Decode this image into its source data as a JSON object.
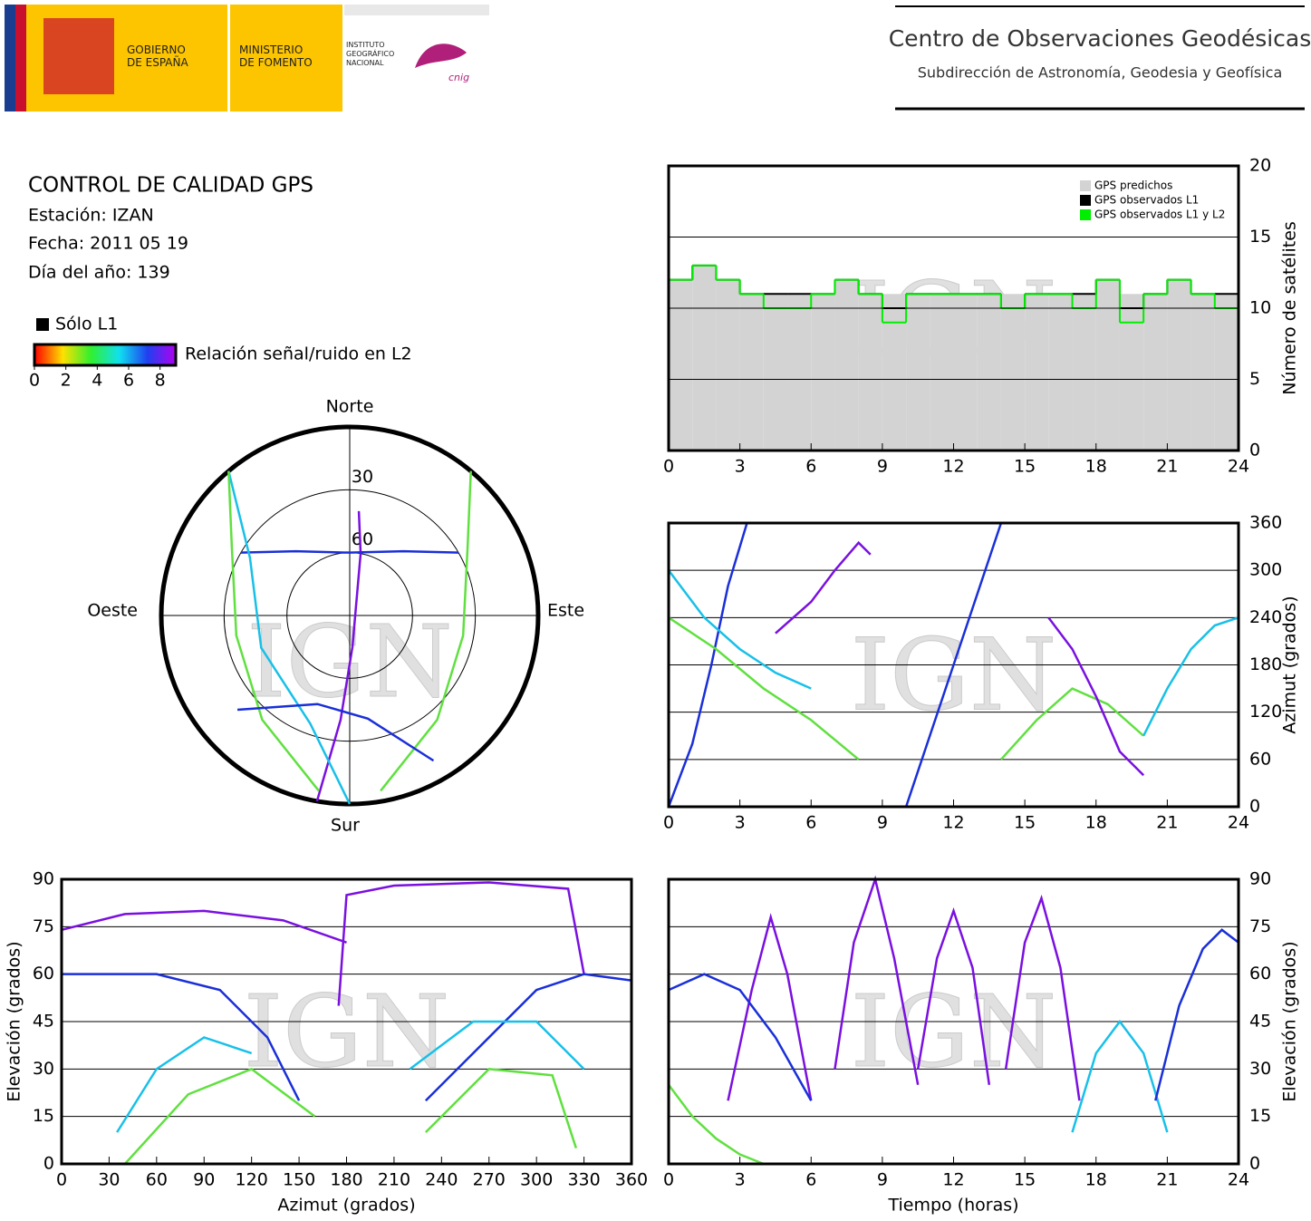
{
  "header": {
    "gov": "GOBIERNO DE ESPAÑA",
    "ministry": "MINISTERIO DE FOMENTO",
    "institute": "INSTITUTO GEOGRÁFICO NACIONAL",
    "cnig": "cnig",
    "center": "Centro de Observaciones Geodésicas",
    "subdirection": "Subdirección de Astronomía, Geodesia y Geofísica"
  },
  "info": {
    "title": "CONTROL DE CALIDAD GPS",
    "station": "Estación: IZAN",
    "date": "Fecha: 2011 05 19",
    "doy": "Día del año: 139"
  },
  "watermark": "IGN",
  "chart_data": [
    {
      "type": "step",
      "ylabel": "Número de satélites",
      "xlim": [
        0,
        24
      ],
      "xticks": [
        0,
        3,
        6,
        9,
        12,
        15,
        18,
        21,
        24
      ],
      "ylim": [
        0,
        20
      ],
      "yticks": [
        0,
        5,
        10,
        15,
        20
      ],
      "grid": true,
      "legend": "upper right",
      "series": [
        {
          "name": "GPS predichos",
          "color": "#d3d3d3",
          "x": [
            0,
            1,
            2,
            3,
            4,
            5,
            6,
            7,
            8,
            9,
            10,
            11,
            12,
            13,
            14,
            15,
            16,
            17,
            18,
            19,
            20,
            21,
            22,
            23
          ],
          "values": [
            12,
            13,
            12,
            11,
            11,
            11,
            11,
            12,
            11,
            11,
            11,
            11,
            11,
            11,
            11,
            11,
            11,
            11,
            12,
            11,
            11,
            12,
            11,
            11
          ]
        },
        {
          "name": "GPS observados L1",
          "color": "#000000",
          "x": [
            0,
            1,
            2,
            3,
            4,
            5,
            6,
            7,
            8,
            9,
            10,
            11,
            12,
            13,
            14,
            15,
            16,
            17,
            18,
            19,
            20,
            21,
            22,
            23
          ],
          "values": [
            12,
            13,
            12,
            11,
            11,
            11,
            11,
            12,
            11,
            10,
            11,
            11,
            11,
            11,
            10,
            11,
            11,
            11,
            12,
            10,
            11,
            12,
            11,
            11
          ]
        },
        {
          "name": "GPS observados L1 y L2",
          "color": "#00ee00",
          "x": [
            0,
            1,
            2,
            3,
            4,
            5,
            6,
            7,
            8,
            9,
            10,
            11,
            12,
            13,
            14,
            15,
            16,
            17,
            18,
            19,
            20,
            21,
            22,
            23
          ],
          "values": [
            12,
            13,
            12,
            11,
            10,
            10,
            11,
            12,
            11,
            9,
            11,
            11,
            11,
            11,
            10,
            11,
            11,
            10,
            12,
            9,
            11,
            12,
            11,
            10
          ]
        }
      ]
    },
    {
      "type": "line",
      "ylabel": "Azimut (grados)",
      "xlim": [
        0,
        24
      ],
      "xticks": [
        0,
        3,
        6,
        9,
        12,
        15,
        18,
        21,
        24
      ],
      "ylim": [
        0,
        360
      ],
      "yticks": [
        0,
        60,
        120,
        180,
        240,
        300,
        360
      ],
      "grid": true,
      "series": [
        {
          "color": "#1a2fd8",
          "x": [
            0,
            1,
            1.8,
            2.5,
            3.3
          ],
          "values": [
            0,
            80,
            180,
            280,
            360
          ]
        },
        {
          "color": "#7a10e0",
          "x": [
            4.5,
            6,
            7,
            8,
            8.5
          ],
          "values": [
            220,
            260,
            300,
            335,
            320
          ]
        },
        {
          "color": "#18c0e8",
          "x": [
            0,
            1.5,
            3,
            4.5,
            6
          ],
          "values": [
            300,
            240,
            200,
            170,
            150
          ]
        },
        {
          "color": "#60e040",
          "x": [
            0,
            2,
            4,
            6,
            8
          ],
          "values": [
            240,
            200,
            150,
            110,
            60
          ]
        },
        {
          "color": "#1a2fd8",
          "x": [
            10,
            11,
            12,
            13,
            14
          ],
          "values": [
            0,
            90,
            180,
            270,
            360
          ]
        },
        {
          "color": "#60e040",
          "x": [
            14,
            15.5,
            17,
            18.5,
            20
          ],
          "values": [
            60,
            110,
            150,
            130,
            90
          ]
        },
        {
          "color": "#7a10e0",
          "x": [
            16,
            17,
            18,
            19,
            20
          ],
          "values": [
            240,
            200,
            140,
            70,
            40
          ]
        },
        {
          "color": "#18c0e8",
          "x": [
            20,
            21,
            22,
            23,
            24
          ],
          "values": [
            90,
            150,
            200,
            230,
            240
          ]
        }
      ]
    },
    {
      "type": "polar",
      "north": "Norte",
      "south": "Sur",
      "east": "Este",
      "west": "Oeste",
      "rlim": [
        0,
        90
      ],
      "rticks": [
        30,
        60
      ],
      "l1_only": "Sólo L1",
      "colorbar": {
        "label": "Relación señal/ruido en L2",
        "lim": [
          0,
          9
        ],
        "ticks": [
          0,
          2,
          4,
          6,
          8
        ]
      },
      "series": [
        {
          "color": "#7a10e0",
          "x": [
            190,
            185,
            175,
            10,
            5
          ],
          "values": [
            0,
            40,
            75,
            60,
            40
          ]
        },
        {
          "color": "#1a2fd8",
          "x": [
            300,
            320,
            0,
            40,
            60
          ],
          "values": [
            30,
            50,
            60,
            50,
            30
          ]
        },
        {
          "color": "#18c0e8",
          "x": [
            320,
            300,
            250,
            200,
            180
          ],
          "values": [
            0,
            35,
            45,
            35,
            0
          ]
        },
        {
          "color": "#60e040",
          "x": [
            40,
            60,
            100,
            140,
            170
          ],
          "values": [
            0,
            25,
            35,
            25,
            5
          ]
        },
        {
          "color": "#60e040",
          "x": [
            320,
            300,
            260,
            220,
            190
          ],
          "values": [
            0,
            25,
            35,
            25,
            5
          ]
        },
        {
          "color": "#1a2fd8",
          "x": [
            150,
            170,
            200,
            230
          ],
          "values": [
            10,
            40,
            45,
            20
          ]
        }
      ]
    },
    {
      "type": "line",
      "xlabel": "Azimut (grados)",
      "ylabel": "Elevación (grados)",
      "xlim": [
        0,
        360
      ],
      "xticks": [
        0,
        30,
        60,
        90,
        120,
        150,
        180,
        210,
        240,
        270,
        300,
        330,
        360
      ],
      "ylim": [
        0,
        90
      ],
      "yticks": [
        0,
        15,
        30,
        45,
        60,
        75,
        90
      ],
      "grid": true,
      "series": [
        {
          "color": "#7a10e0",
          "x": [
            0,
            40,
            90,
            140,
            180
          ],
          "values": [
            74,
            79,
            80,
            77,
            70
          ]
        },
        {
          "color": "#7a10e0",
          "x": [
            175,
            180,
            210,
            270,
            320,
            330
          ],
          "values": [
            50,
            85,
            88,
            89,
            87,
            60
          ]
        },
        {
          "color": "#1a2fd8",
          "x": [
            0,
            60,
            100,
            130,
            150
          ],
          "values": [
            60,
            60,
            55,
            40,
            20
          ]
        },
        {
          "color": "#1a2fd8",
          "x": [
            230,
            270,
            300,
            330,
            360
          ],
          "values": [
            20,
            40,
            55,
            60,
            58
          ]
        },
        {
          "color": "#18c0e8",
          "x": [
            35,
            60,
            90,
            120
          ],
          "values": [
            10,
            30,
            40,
            35
          ]
        },
        {
          "color": "#60e040",
          "x": [
            40,
            80,
            120,
            160
          ],
          "values": [
            0,
            22,
            30,
            15
          ]
        },
        {
          "color": "#60e040",
          "x": [
            230,
            270,
            310,
            325
          ],
          "values": [
            10,
            30,
            28,
            5
          ]
        },
        {
          "color": "#18c0e8",
          "x": [
            220,
            260,
            300,
            330
          ],
          "values": [
            30,
            45,
            45,
            30
          ]
        }
      ]
    },
    {
      "type": "line",
      "xlabel": "Tiempo (horas)",
      "ylabel": "Elevación (grados)",
      "xlim": [
        0,
        24
      ],
      "xticks": [
        0,
        3,
        6,
        9,
        12,
        15,
        18,
        21,
        24
      ],
      "ylim": [
        0,
        90
      ],
      "yticks": [
        0,
        15,
        30,
        45,
        60,
        75,
        90
      ],
      "grid": true,
      "series": [
        {
          "color": "#7a10e0",
          "x": [
            2.5,
            3.5,
            4.3,
            5,
            6
          ],
          "values": [
            20,
            55,
            78,
            60,
            20
          ]
        },
        {
          "color": "#1a2fd8",
          "x": [
            0,
            1.5,
            3,
            4.5,
            6
          ],
          "values": [
            55,
            60,
            55,
            40,
            20
          ]
        },
        {
          "color": "#7a10e0",
          "x": [
            7,
            7.8,
            8.7,
            9.5,
            10.5
          ],
          "values": [
            30,
            70,
            90,
            65,
            25
          ]
        },
        {
          "color": "#7a10e0",
          "x": [
            10.5,
            11.3,
            12,
            12.8,
            13.5
          ],
          "values": [
            30,
            65,
            80,
            62,
            25
          ]
        },
        {
          "color": "#7a10e0",
          "x": [
            14.2,
            15,
            15.7,
            16.5,
            17.3
          ],
          "values": [
            30,
            70,
            84,
            62,
            20
          ]
        },
        {
          "color": "#18c0e8",
          "x": [
            17,
            18,
            19,
            20,
            21
          ],
          "values": [
            10,
            35,
            45,
            35,
            10
          ]
        },
        {
          "color": "#60e040",
          "x": [
            0,
            1,
            2,
            3,
            4
          ],
          "values": [
            25,
            15,
            8,
            3,
            0
          ]
        },
        {
          "color": "#1a2fd8",
          "x": [
            20.5,
            21.5,
            22.5,
            23.3,
            24
          ],
          "values": [
            20,
            50,
            68,
            74,
            70
          ]
        }
      ]
    }
  ]
}
